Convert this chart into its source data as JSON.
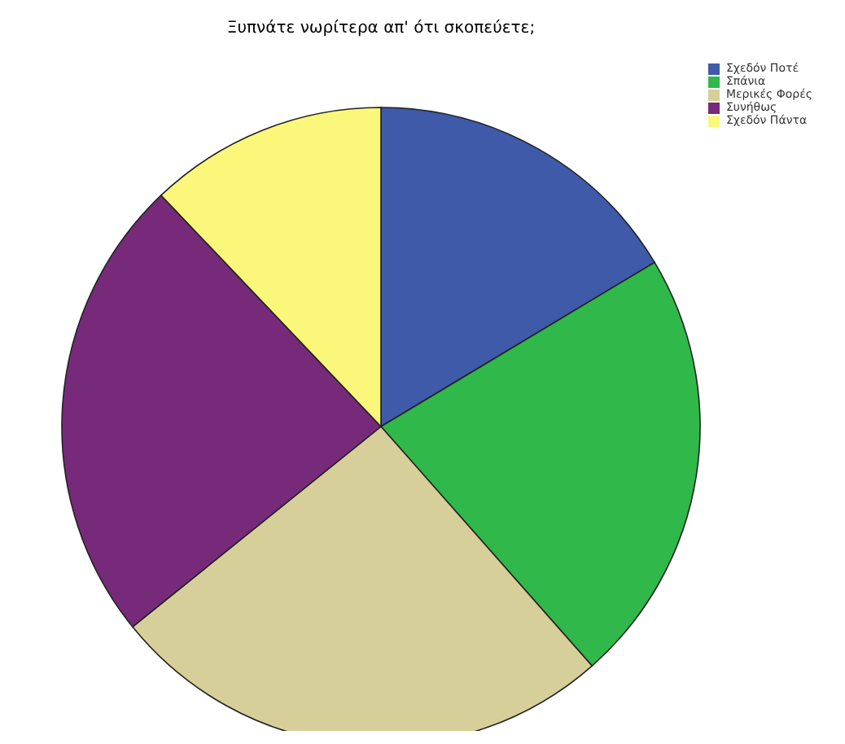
{
  "chart_data": {
    "type": "pie",
    "title": "Ξυπνάτε νωρίτερα απ' ότι σκοπεύετε;",
    "categories": [
      "Σχεδόν Ποτέ",
      "Σπάνια",
      "Μερικές Φορές",
      "Συνήθως",
      "Σχεδόν Πάντα"
    ],
    "values": [
      16.4,
      22.1,
      25.7,
      23.7,
      12.1
    ],
    "colors": [
      "#3e5aa8",
      "#30b84a",
      "#d6cf9a",
      "#772a7a",
      "#fbf77a"
    ],
    "legend": "top right"
  }
}
